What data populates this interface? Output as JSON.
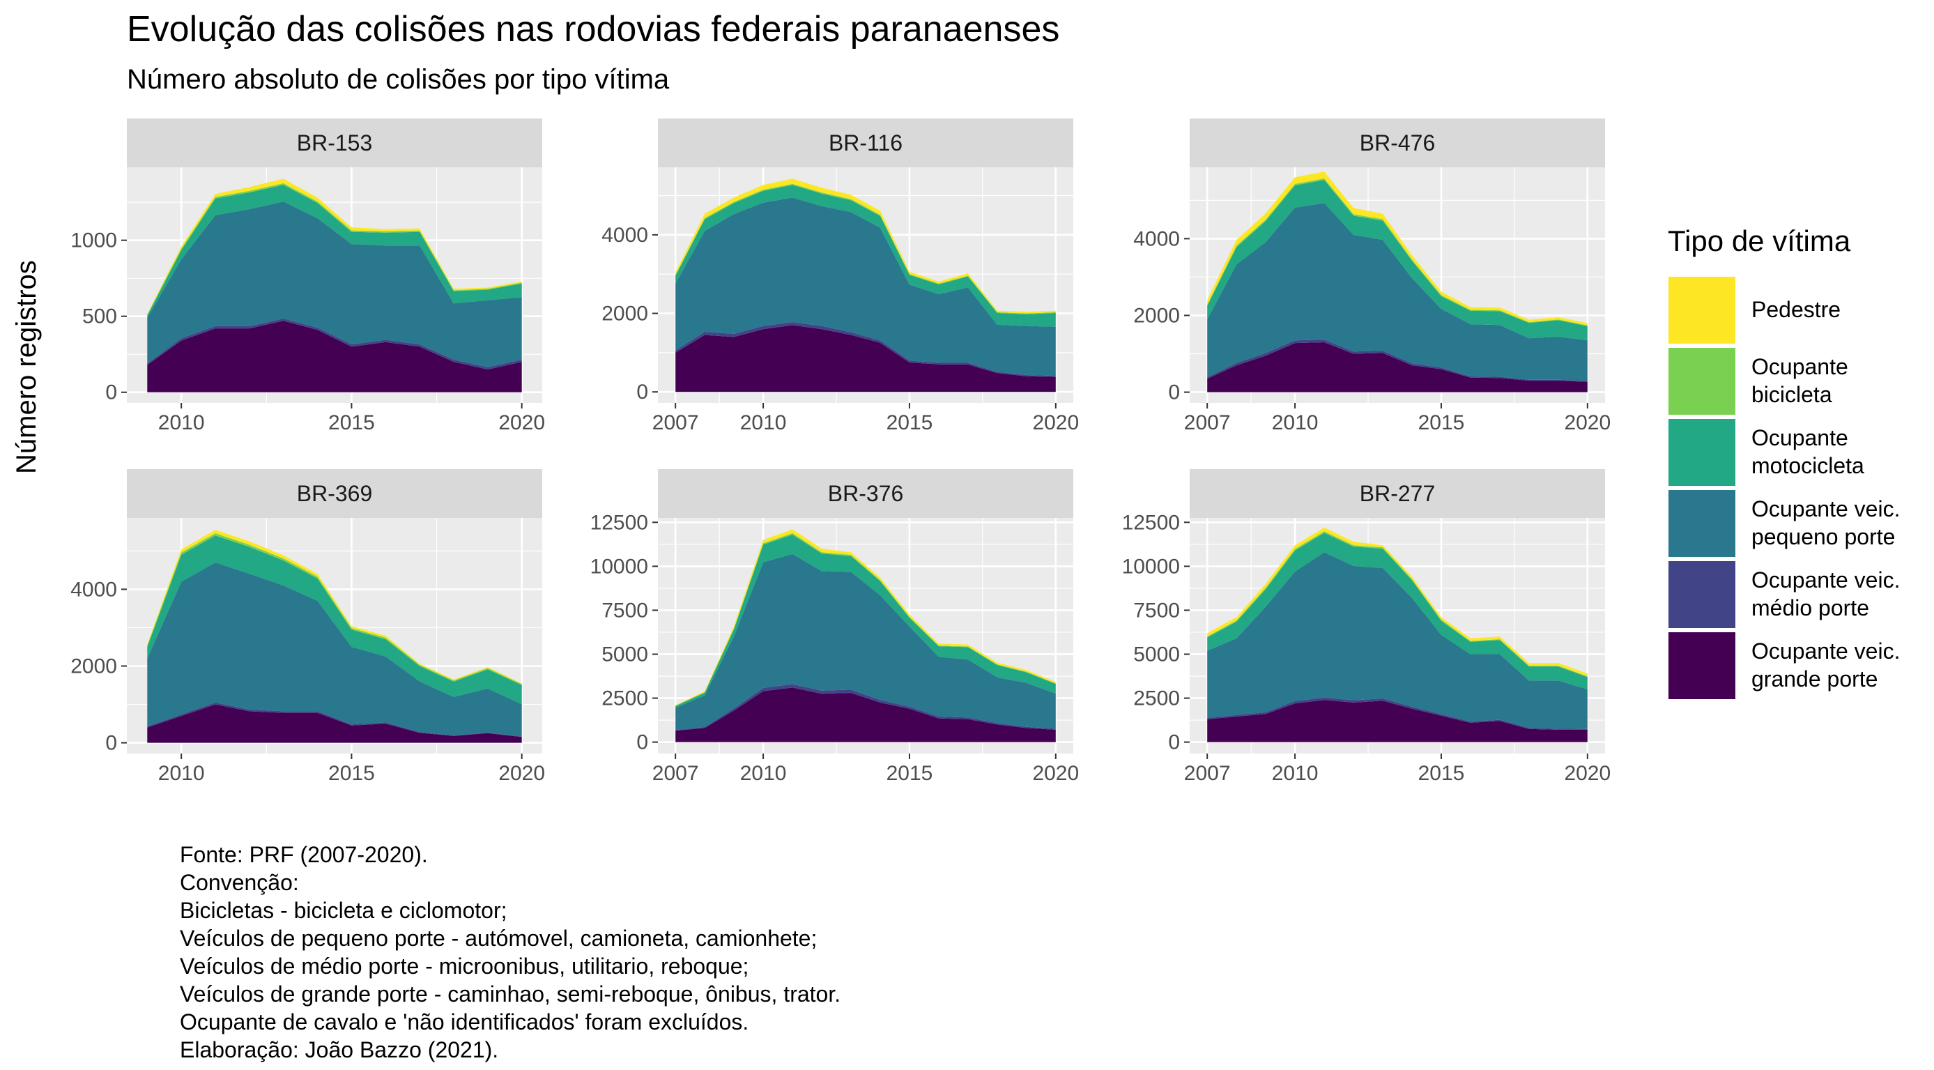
{
  "title": "Evolução das colisões nas rodovias federais paranaenses",
  "subtitle": "Número absoluto de colisões por tipo vítima",
  "ylabel": "Número registros",
  "legend": {
    "title": "Tipo de vítima",
    "items": [
      {
        "label": "Pedestre",
        "color": "#FDE725"
      },
      {
        "label": "Ocupante\nbicicleta",
        "color": "#7AD151"
      },
      {
        "label": "Ocupante\nmotocicleta",
        "color": "#22A884"
      },
      {
        "label": "Ocupante veic.\npequeno porte",
        "color": "#2A788E"
      },
      {
        "label": "Ocupante veic.\nmédio porte",
        "color": "#414487"
      },
      {
        "label": "Ocupante veic.\ngrande porte",
        "color": "#440154"
      }
    ]
  },
  "caption": [
    "Fonte: PRF (2007-2020).",
    "Convenção:",
    "Bicicletas - bicicleta e ciclomotor;",
    "Veículos de pequeno porte - autómovel, camioneta, camionhete;",
    "Veículos de médio porte - microonibus, utilitario, reboque;",
    "Veículos de grande porte - caminhao, semi-reboque, ônibus, trator.",
    "Ocupante de cavalo e 'não identificados' foram excluídos.",
    "Elaboração: João Bazzo (2021)."
  ],
  "chart_data": {
    "type": "area",
    "stacked": true,
    "xlabel": "",
    "ylabel": "Número registros",
    "stack_order_bottom_to_top": [
      "Ocupante veic. grande porte",
      "Ocupante veic. médio porte",
      "Ocupante veic. pequeno porte",
      "Ocupante motocicleta",
      "Ocupante bicicleta",
      "Pedestre"
    ],
    "panels": [
      {
        "name": "BR-153",
        "xlim": [
          2008.4,
          2020.6
        ],
        "ylim": [
          -70,
          1480
        ],
        "xticks": [
          2010,
          2015,
          2020
        ],
        "yticks": [
          0,
          500,
          1000
        ],
        "x": [
          2009,
          2010,
          2011,
          2012,
          2013,
          2014,
          2015,
          2016,
          2017,
          2018,
          2019,
          2020
        ],
        "series": [
          {
            "name": "Ocupante veic. grande porte",
            "values": [
              180,
              340,
              420,
              420,
              470,
              410,
              300,
              330,
              300,
              200,
              150,
              200
            ]
          },
          {
            "name": "Ocupante veic. médio porte",
            "values": [
              10,
              15,
              15,
              15,
              15,
              15,
              15,
              15,
              15,
              15,
              15,
              15
            ]
          },
          {
            "name": "Ocupante veic. pequeno porte",
            "values": [
              300,
              520,
              730,
              770,
              770,
              720,
              660,
              620,
              650,
              370,
              440,
              410
            ]
          },
          {
            "name": "Ocupante motocicleta",
            "values": [
              15,
              60,
              110,
              110,
              110,
              100,
              80,
              85,
              90,
              80,
              70,
              90
            ]
          },
          {
            "name": "Ocupante bicicleta",
            "values": [
              5,
              10,
              10,
              10,
              10,
              10,
              10,
              8,
              8,
              6,
              6,
              6
            ]
          },
          {
            "name": "Pedestre",
            "values": [
              5,
              15,
              20,
              25,
              30,
              25,
              20,
              15,
              15,
              10,
              8,
              8
            ]
          }
        ]
      },
      {
        "name": "BR-116",
        "xlim": [
          2006.4,
          2020.6
        ],
        "ylim": [
          -280,
          5720
        ],
        "xticks": [
          2007,
          2010,
          2015,
          2020
        ],
        "yticks": [
          0,
          2000,
          4000
        ],
        "x": [
          2007,
          2008,
          2009,
          2010,
          2011,
          2012,
          2013,
          2014,
          2015,
          2016,
          2017,
          2018,
          2019,
          2020
        ],
        "series": [
          {
            "name": "Ocupante veic. grande porte",
            "values": [
              1000,
              1450,
              1400,
              1600,
              1700,
              1600,
              1450,
              1250,
              750,
              700,
              700,
              480,
              400,
              380
            ]
          },
          {
            "name": "Ocupante veic. médio porte",
            "values": [
              60,
              80,
              80,
              80,
              80,
              80,
              70,
              60,
              50,
              40,
              40,
              30,
              30,
              30
            ]
          },
          {
            "name": "Ocupante veic. pequeno porte",
            "values": [
              1700,
              2570,
              3050,
              3140,
              3170,
              3050,
              3060,
              2870,
              1930,
              1750,
              1920,
              1200,
              1250,
              1250
            ]
          },
          {
            "name": "Ocupante motocicleta",
            "values": [
              200,
              300,
              280,
              300,
              320,
              320,
              300,
              300,
              250,
              250,
              280,
              300,
              300,
              350
            ]
          },
          {
            "name": "Ocupante bicicleta",
            "values": [
              20,
              30,
              30,
              30,
              30,
              30,
              30,
              30,
              20,
              20,
              20,
              20,
              20,
              20
            ]
          },
          {
            "name": "Pedestre",
            "values": [
              70,
              110,
              110,
              120,
              130,
              120,
              110,
              100,
              60,
              50,
              60,
              40,
              40,
              40
            ]
          }
        ]
      },
      {
        "name": "BR-476",
        "xlim": [
          2006.4,
          2020.6
        ],
        "ylim": [
          -280,
          5860
        ],
        "xticks": [
          2007,
          2010,
          2015,
          2020
        ],
        "yticks": [
          0,
          2000,
          4000
        ],
        "x": [
          2007,
          2008,
          2009,
          2010,
          2011,
          2012,
          2013,
          2014,
          2015,
          2016,
          2017,
          2018,
          2019,
          2020
        ],
        "series": [
          {
            "name": "Ocupante veic. grande porte",
            "values": [
              350,
              700,
              950,
              1280,
              1300,
              1000,
              1020,
              700,
              600,
              380,
              370,
              300,
              300,
              270
            ]
          },
          {
            "name": "Ocupante veic. médio porte",
            "values": [
              40,
              60,
              70,
              70,
              70,
              60,
              60,
              50,
              40,
              30,
              30,
              25,
              25,
              20
            ]
          },
          {
            "name": "Ocupante veic. pequeno porte",
            "values": [
              1510,
              2570,
              2890,
              3460,
              3560,
              3040,
              2890,
              2220,
              1530,
              1360,
              1350,
              1080,
              1120,
              1060
            ]
          },
          {
            "name": "Ocupante motocicleta",
            "values": [
              350,
              450,
              550,
              580,
              600,
              500,
              500,
              450,
              330,
              350,
              360,
              400,
              430,
              370
            ]
          },
          {
            "name": "Ocupante bicicleta",
            "values": [
              30,
              40,
              40,
              40,
              40,
              40,
              40,
              35,
              30,
              25,
              25,
              20,
              20,
              20
            ]
          },
          {
            "name": "Pedestre",
            "values": [
              120,
              150,
              160,
              170,
              180,
              160,
              140,
              110,
              90,
              70,
              70,
              60,
              60,
              60
            ]
          }
        ]
      },
      {
        "name": "BR-369",
        "xlim": [
          2008.4,
          2020.6
        ],
        "ylim": [
          -280,
          5860
        ],
        "xticks": [
          2010,
          2015,
          2020
        ],
        "yticks": [
          0,
          2000,
          4000
        ],
        "x": [
          2009,
          2010,
          2011,
          2012,
          2013,
          2014,
          2015,
          2016,
          2017,
          2018,
          2019,
          2020
        ],
        "series": [
          {
            "name": "Ocupante veic. grande porte",
            "values": [
              400,
              700,
              1000,
              820,
              780,
              780,
              450,
              500,
              260,
              180,
              250,
              150
            ]
          },
          {
            "name": "Ocupante veic. médio porte",
            "values": [
              30,
              40,
              50,
              45,
              40,
              40,
              30,
              30,
              20,
              15,
              15,
              15
            ]
          },
          {
            "name": "Ocupante veic. pequeno porte",
            "values": [
              1770,
              3460,
              3650,
              3540,
              3280,
              2880,
              2020,
              1720,
              1320,
              1000,
              1150,
              840
            ]
          },
          {
            "name": "Ocupante motocicleta",
            "values": [
              300,
              700,
              700,
              700,
              650,
              580,
              450,
              450,
              400,
              400,
              500,
              500
            ]
          },
          {
            "name": "Ocupante bicicleta",
            "values": [
              30,
              60,
              60,
              55,
              55,
              50,
              40,
              40,
              30,
              30,
              30,
              25
            ]
          },
          {
            "name": "Pedestre",
            "values": [
              40,
              80,
              90,
              90,
              80,
              70,
              50,
              50,
              30,
              25,
              25,
              20
            ]
          }
        ]
      },
      {
        "name": "BR-376",
        "xlim": [
          2006.4,
          2020.6
        ],
        "ylim": [
          -650,
          12750
        ],
        "xticks": [
          2007,
          2010,
          2015,
          2020
        ],
        "yticks": [
          0,
          2500,
          5000,
          7500,
          10000,
          12500
        ],
        "x": [
          2007,
          2008,
          2009,
          2010,
          2011,
          2012,
          2013,
          2014,
          2015,
          2016,
          2017,
          2018,
          2019,
          2020
        ],
        "series": [
          {
            "name": "Ocupante veic. grande porte",
            "values": [
              650,
              800,
              1800,
              2900,
              3100,
              2750,
              2800,
              2250,
              1900,
              1350,
              1300,
              1000,
              800,
              700
            ]
          },
          {
            "name": "Ocupante veic. médio porte",
            "values": [
              40,
              60,
              120,
              180,
              200,
              180,
              180,
              150,
              120,
              100,
              100,
              80,
              70,
              60
            ]
          },
          {
            "name": "Ocupante veic. pequeno porte",
            "values": [
              1260,
              1800,
              4100,
              7150,
              7400,
              6800,
              6700,
              5950,
              4550,
              3400,
              3300,
              2600,
              2500,
              2000
            ]
          },
          {
            "name": "Ocupante motocicleta",
            "values": [
              100,
              150,
              400,
              1000,
              1100,
              1000,
              900,
              800,
              500,
              600,
              700,
              700,
              600,
              550
            ]
          },
          {
            "name": "Ocupante bicicleta",
            "values": [
              20,
              30,
              50,
              80,
              80,
              70,
              70,
              60,
              50,
              40,
              40,
              40,
              35,
              30
            ]
          },
          {
            "name": "Pedestre",
            "values": [
              30,
              60,
              130,
              190,
              220,
              200,
              150,
              140,
              130,
              110,
              110,
              100,
              95,
              80
            ]
          }
        ]
      },
      {
        "name": "BR-277",
        "xlim": [
          2006.4,
          2020.6
        ],
        "ylim": [
          -650,
          12750
        ],
        "xticks": [
          2007,
          2010,
          2015,
          2020
        ],
        "yticks": [
          0,
          2500,
          5000,
          7500,
          10000,
          12500
        ],
        "x": [
          2007,
          2008,
          2009,
          2010,
          2011,
          2012,
          2013,
          2014,
          2015,
          2016,
          2017,
          2018,
          2019,
          2020
        ],
        "series": [
          {
            "name": "Ocupante veic. grande porte",
            "values": [
              1300,
              1450,
              1600,
              2200,
              2400,
              2250,
              2350,
              1900,
              1500,
              1100,
              1200,
              750,
              700,
              700
            ]
          },
          {
            "name": "Ocupante veic. médio porte",
            "values": [
              80,
              90,
              100,
              130,
              140,
              130,
              130,
              110,
              90,
              70,
              70,
              60,
              60,
              50
            ]
          },
          {
            "name": "Ocupante veic. pequeno porte",
            "values": [
              3820,
              4360,
              6000,
              7370,
              8260,
              7640,
              7420,
              6190,
              4510,
              3830,
              3730,
              2690,
              2740,
              2250
            ]
          },
          {
            "name": "Ocupante motocicleta",
            "values": [
              750,
              950,
              1000,
              1200,
              1100,
              1100,
              1100,
              1000,
              800,
              700,
              800,
              800,
              800,
              700
            ]
          },
          {
            "name": "Ocupante bicicleta",
            "values": [
              60,
              70,
              80,
              90,
              90,
              80,
              80,
              70,
              60,
              50,
              50,
              50,
              45,
              40
            ]
          },
          {
            "name": "Pedestre",
            "values": [
              190,
              180,
              220,
              210,
              210,
              200,
              120,
              130,
              140,
              150,
              150,
              150,
              155,
              160
            ]
          }
        ]
      }
    ]
  }
}
